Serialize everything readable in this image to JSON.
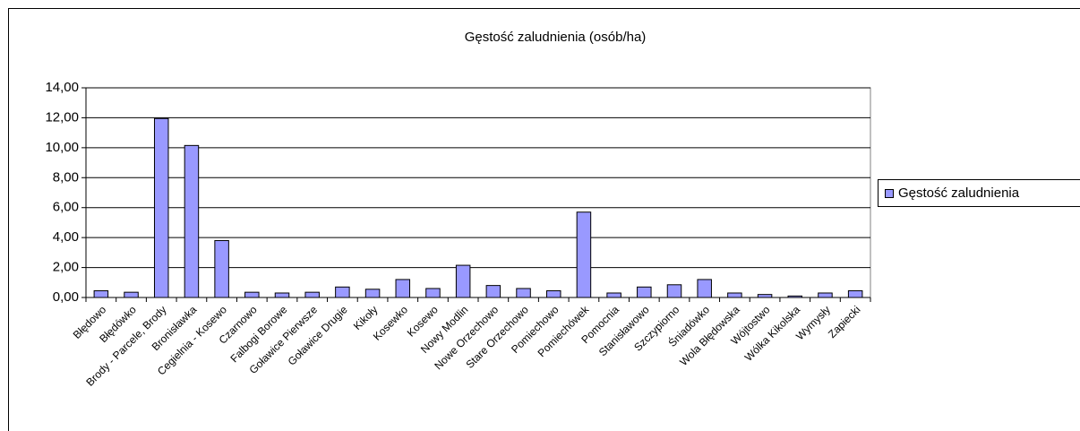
{
  "chart_data": {
    "type": "bar",
    "title": "Gęstość zaludnienia (osób/ha)",
    "categories": [
      "Błędowo",
      "Błędówko",
      "Brody - Parcele, Brody",
      "Bronisławka",
      "Cegielnia - Kosewo",
      "Czarnowo",
      "Falbogi Borowe",
      "Goławice Pierwsze",
      "Goławice Drugie",
      "Kikoły",
      "Kosewko",
      "Kosewo",
      "Nowy Modlin",
      "Nowe Orzechowo",
      "Stare Orzechowo",
      "Pomiechowo",
      "Pomiechówek",
      "Pomocnia",
      "Stanisławowo",
      "Szczypiorno",
      "Śniadówko",
      "Wola Błędowska",
      "Wójtostwo",
      "Wólka Kikolska",
      "Wymysły",
      "Zapiecki"
    ],
    "series": [
      {
        "name": "Gęstość zaludnienia",
        "color": "#9999ff",
        "values": [
          0.45,
          0.35,
          11.95,
          10.15,
          3.8,
          0.35,
          0.3,
          0.35,
          0.7,
          0.55,
          1.2,
          0.6,
          2.15,
          0.8,
          0.6,
          0.45,
          5.7,
          0.3,
          0.7,
          0.85,
          1.2,
          0.3,
          0.2,
          0.1,
          0.3,
          0.45
        ]
      }
    ],
    "ylim": [
      0,
      14
    ],
    "yticks": [
      {
        "value": 0,
        "label": "0,00"
      },
      {
        "value": 2,
        "label": "2,00"
      },
      {
        "value": 4,
        "label": "4,00"
      },
      {
        "value": 6,
        "label": "6,00"
      },
      {
        "value": 8,
        "label": "8,00"
      },
      {
        "value": 10,
        "label": "10,00"
      },
      {
        "value": 12,
        "label": "12,00"
      },
      {
        "value": 14,
        "label": "14,00"
      }
    ],
    "grid": true,
    "legend": "right"
  }
}
